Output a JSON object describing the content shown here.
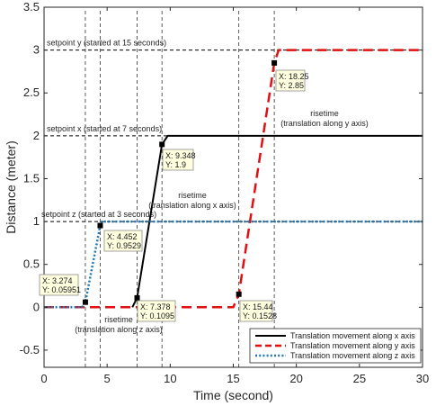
{
  "chart_data": {
    "type": "line",
    "xlabel": "Time (second)",
    "ylabel": "Distance (meter)",
    "xlim": [
      0,
      30
    ],
    "ylim": [
      -0.7,
      3.5
    ],
    "xticks": [
      "0",
      "5",
      "10",
      "15",
      "20",
      "25",
      "30"
    ],
    "yticks": [
      "-0.5",
      "0",
      "0.5",
      "1",
      "1.5",
      "2",
      "2.5",
      "3",
      "3.5"
    ],
    "grid": false,
    "legend_position": "bottom-right",
    "series": [
      {
        "name": "Translation movement along x axis",
        "color": "#000000",
        "style": "solid",
        "points": [
          [
            7,
            0
          ],
          [
            7.378,
            0.1095
          ],
          [
            9.348,
            1.9
          ],
          [
            9.8,
            2
          ],
          [
            30,
            2
          ]
        ]
      },
      {
        "name": "Translation movement along y axis",
        "color": "#e01010",
        "style": "dashed",
        "points": [
          [
            0,
            0
          ],
          [
            15,
            0
          ],
          [
            15.44,
            0.1528
          ],
          [
            18.25,
            2.85
          ],
          [
            18.6,
            3
          ],
          [
            30,
            3
          ]
        ]
      },
      {
        "name": "Translation movement along z axis",
        "color": "#1f77b4",
        "style": "dotted",
        "points": [
          [
            0,
            0
          ],
          [
            3,
            0
          ],
          [
            3.274,
            0.05951
          ],
          [
            4.452,
            0.9529
          ],
          [
            4.6,
            1
          ],
          [
            30,
            1
          ]
        ]
      }
    ],
    "setpoint_lines": [
      {
        "y": 3,
        "label": "setpoint y (started at 15 seconds)"
      },
      {
        "y": 2,
        "label": "setpoint x (started at 7 seconds)"
      },
      {
        "y": 1,
        "label": "setpoint z (started at 3 seconds)"
      }
    ],
    "vertical_lines": [
      3.274,
      4.452,
      7.378,
      9.348,
      15.44,
      18.25
    ],
    "datatips": [
      {
        "x": 3.274,
        "y": 0.05951,
        "xtext": "X: 3.274",
        "ytext": "Y: 0.05951"
      },
      {
        "x": 4.452,
        "y": 0.9529,
        "xtext": "X: 4.452",
        "ytext": "Y: 0.9529"
      },
      {
        "x": 7.378,
        "y": 0.1095,
        "xtext": "X: 7.378",
        "ytext": "Y: 0.1095"
      },
      {
        "x": 9.348,
        "y": 1.9,
        "xtext": "X: 9.348",
        "ytext": "Y: 1.9"
      },
      {
        "x": 15.44,
        "y": 0.1528,
        "xtext": "X: 15.44",
        "ytext": "Y: 0.1528"
      },
      {
        "x": 18.25,
        "y": 2.85,
        "xtext": "X: 18.25",
        "ytext": "Y: 2.85"
      }
    ],
    "annotations": [
      {
        "line1": "risetime",
        "line2": "(translation along z axis)"
      },
      {
        "line1": "risetime",
        "line2": "(translation along x axis)"
      },
      {
        "line1": "risetime",
        "line2": "(translation along y axis)"
      }
    ]
  }
}
